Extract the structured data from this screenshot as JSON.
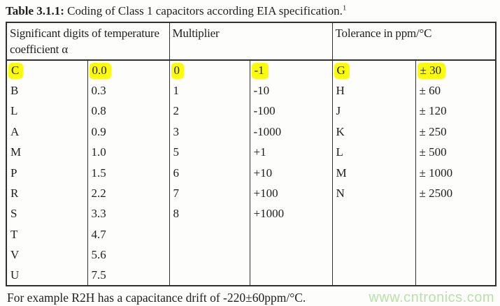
{
  "caption": {
    "label": "Table 3.1.1:",
    "text": " Coding of Class 1 capacitors according EIA specification.",
    "footnote_ref": "1"
  },
  "table": {
    "headers": [
      "Significant digits of temperature coefficient α",
      "Multiplier",
      "Tolerance in ppm/°C"
    ],
    "columns": [
      "temp-coeff-letter",
      "temp-coeff-value",
      "multiplier-digit",
      "multiplier-value",
      "tolerance-letter",
      "tolerance-value"
    ],
    "rows": [
      {
        "highlighted": true,
        "cells": [
          "C",
          "0.0",
          "0",
          "-1",
          "G",
          "± 30"
        ]
      },
      {
        "highlighted": false,
        "cells": [
          "B",
          "0.3",
          "1",
          "-10",
          "H",
          "± 60"
        ]
      },
      {
        "highlighted": false,
        "cells": [
          "L",
          "0.8",
          "2",
          "-100",
          "J",
          "± 120"
        ]
      },
      {
        "highlighted": false,
        "cells": [
          "A",
          "0.9",
          "3",
          "-1000",
          "K",
          "± 250"
        ]
      },
      {
        "highlighted": false,
        "cells": [
          "M",
          "1.0",
          "5",
          "+1",
          "L",
          "± 500"
        ]
      },
      {
        "highlighted": false,
        "cells": [
          "P",
          "1.5",
          "6",
          "+10",
          "M",
          "± 1000"
        ]
      },
      {
        "highlighted": false,
        "cells": [
          "R",
          "2.2",
          "7",
          "+100",
          "N",
          "± 2500"
        ]
      },
      {
        "highlighted": false,
        "cells": [
          "S",
          "3.3",
          "8",
          "+1000",
          "",
          ""
        ]
      },
      {
        "highlighted": false,
        "cells": [
          "T",
          "4.7",
          "",
          "",
          "",
          ""
        ]
      },
      {
        "highlighted": false,
        "cells": [
          "V",
          "5.6",
          "",
          "",
          "",
          ""
        ]
      },
      {
        "highlighted": false,
        "cells": [
          "U",
          "7.5",
          "",
          "",
          "",
          ""
        ]
      }
    ]
  },
  "footnote": {
    "text": "For example R2H has a capacitance drift of -220±60ppm/°C."
  },
  "watermark": {
    "text": "www.cntronics.com"
  },
  "colors": {
    "highlight": "#fcfc0a",
    "watermark_green": "#b7e2a6",
    "border": "#303030",
    "text": "#1e1e1e"
  }
}
